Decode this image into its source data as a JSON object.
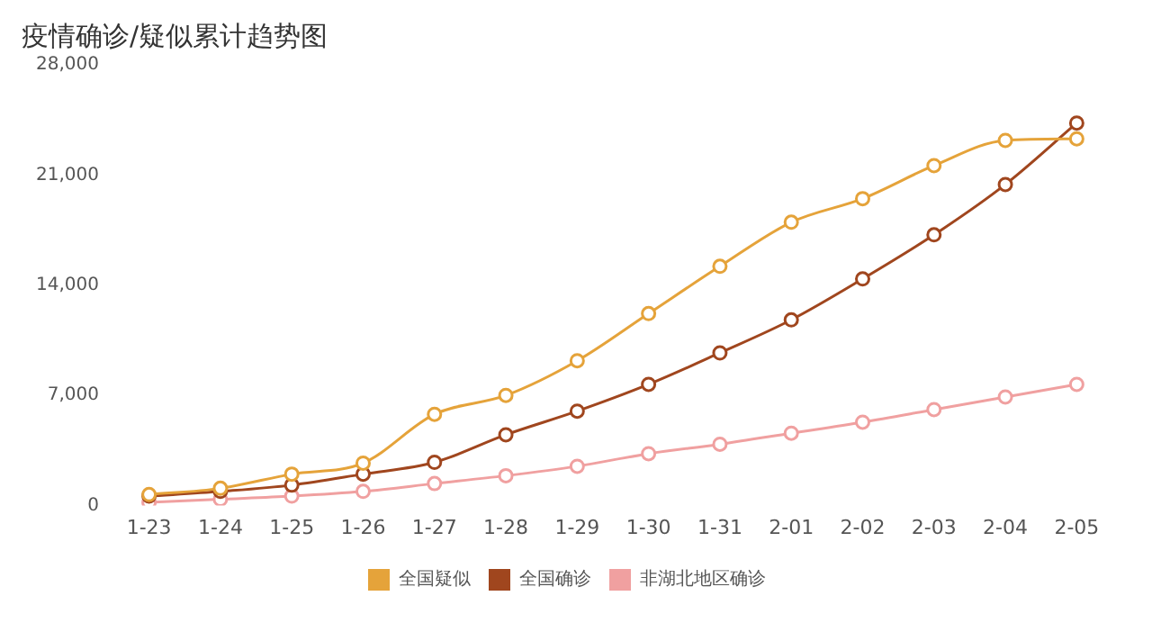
{
  "chart_data": {
    "type": "line",
    "title": "疫情确诊/疑似累计趋势图",
    "categories": [
      "1-23",
      "1-24",
      "1-25",
      "1-26",
      "1-27",
      "1-28",
      "1-29",
      "1-30",
      "1-31",
      "2-01",
      "2-02",
      "2-03",
      "2-04",
      "2-05"
    ],
    "series": [
      {
        "name": "全国疑似",
        "color": "#e5a33a",
        "values": [
          700,
          1100,
          2000,
          2700,
          5800,
          7000,
          9200,
          12200,
          15200,
          18000,
          19500,
          21600,
          23200,
          23300
        ]
      },
      {
        "name": "全国确诊",
        "color": "#a0461e",
        "values": [
          600,
          900,
          1300,
          2000,
          2750,
          4500,
          6000,
          7700,
          9700,
          11800,
          14400,
          17200,
          20400,
          24300
        ]
      },
      {
        "name": "非湖北地区确诊",
        "color": "#f0a0a0",
        "values": [
          200,
          400,
          600,
          900,
          1400,
          1900,
          2500,
          3300,
          3900,
          4600,
          5300,
          6100,
          6900,
          7700
        ]
      }
    ],
    "ylim": [
      0,
      28000
    ],
    "yticks": [
      0,
      {
        "value": 7000,
        "label": "7,000"
      },
      {
        "value": 14000,
        "label": "14,000"
      },
      {
        "value": 21000,
        "label": "21,000"
      },
      {
        "value": 28000,
        "label": "28,000"
      }
    ],
    "grid": false,
    "legend": "bottom",
    "marker": "circle",
    "line_style": "solid"
  }
}
